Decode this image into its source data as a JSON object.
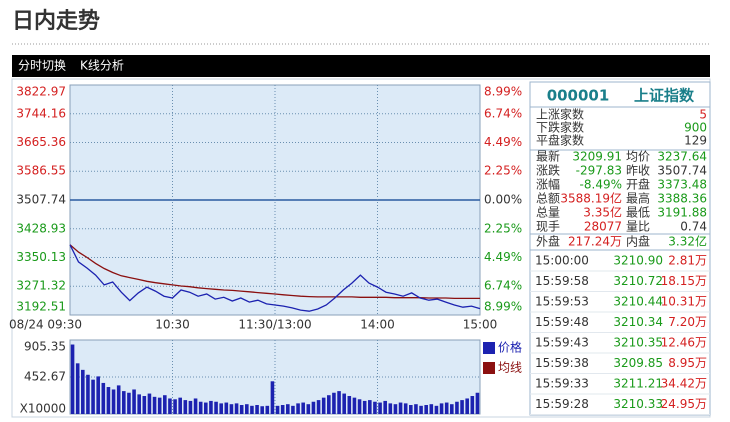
{
  "header": {
    "title": "日内走势"
  },
  "tabs": [
    "分时切换",
    "K线分析"
  ],
  "chart_data": [
    {
      "type": "line",
      "x": [
        0,
        5,
        10,
        15,
        20,
        25,
        30,
        35,
        40,
        45,
        50,
        55,
        60,
        65,
        70,
        75,
        80,
        85,
        90,
        95,
        100,
        105,
        110,
        115,
        120,
        125,
        130,
        135,
        140,
        145,
        150,
        155,
        160,
        165,
        170,
        175,
        180,
        185,
        190,
        195,
        200,
        205,
        210,
        215,
        220,
        225,
        230,
        235,
        240
      ],
      "xlim": [
        0,
        240
      ],
      "xticks": [
        {
          "value": 0,
          "label": "08/24 09:30"
        },
        {
          "value": 60,
          "label": "10:30"
        },
        {
          "value": 120,
          "label": "11:30/13:00"
        },
        {
          "value": 180,
          "label": "14:00"
        },
        {
          "value": 240,
          "label": "15:00"
        }
      ],
      "ylim": [
        3192.51,
        3822.97
      ],
      "yticks": [
        3822.97,
        3744.16,
        3665.36,
        3586.55,
        3507.74,
        3428.93,
        3350.13,
        3271.32,
        3192.51
      ],
      "y2lim": [
        -8.99,
        8.99
      ],
      "y2ticks": [
        {
          "value": 8.99,
          "label": "8.99%"
        },
        {
          "value": 6.74,
          "label": "6.74%"
        },
        {
          "value": 4.49,
          "label": "4.49%"
        },
        {
          "value": 2.25,
          "label": "2.25%"
        },
        {
          "value": 0,
          "label": "0.00%"
        },
        {
          "value": -2.25,
          "label": "2.25%"
        },
        {
          "value": -4.49,
          "label": "4.49%"
        },
        {
          "value": -6.74,
          "label": "6.74%"
        },
        {
          "value": -8.99,
          "label": "8.99%"
        }
      ],
      "baseline": 3507.74,
      "grid": true,
      "series": [
        {
          "name": "价格",
          "color": "#1c22b0",
          "values": [
            3385,
            3338,
            3321,
            3302,
            3275,
            3283,
            3255,
            3232,
            3253,
            3269,
            3258,
            3244,
            3239,
            3261,
            3255,
            3244,
            3250,
            3236,
            3241,
            3231,
            3239,
            3228,
            3233,
            3223,
            3220,
            3217,
            3212,
            3206,
            3203,
            3209,
            3220,
            3239,
            3261,
            3280,
            3302,
            3280,
            3269,
            3255,
            3250,
            3244,
            3253,
            3239,
            3233,
            3236,
            3228,
            3220,
            3214,
            3217,
            3210
          ]
        },
        {
          "name": "均线",
          "color": "#8b1010",
          "values": [
            3385,
            3365,
            3350,
            3334,
            3320,
            3309,
            3300,
            3295,
            3290,
            3285,
            3281,
            3278,
            3275,
            3272,
            3270,
            3267,
            3265,
            3263,
            3261,
            3260,
            3258,
            3256,
            3254,
            3252,
            3250,
            3248,
            3246,
            3244,
            3243,
            3242,
            3242,
            3242,
            3242,
            3242,
            3241,
            3241,
            3241,
            3241,
            3240,
            3240,
            3240,
            3240,
            3239,
            3239,
            3239,
            3238,
            3238,
            3238,
            3238
          ]
        }
      ]
    },
    {
      "type": "bar",
      "color": "#1c22b0",
      "values": [
        850,
        620,
        540,
        480,
        420,
        460,
        380,
        330,
        300,
        350,
        280,
        260,
        300,
        240,
        220,
        250,
        210,
        200,
        230,
        190,
        180,
        200,
        170,
        160,
        190,
        150,
        140,
        160,
        150,
        130,
        140,
        120,
        130,
        110,
        120,
        100,
        110,
        95,
        100,
        400,
        100,
        110,
        120,
        100,
        130,
        140,
        120,
        150,
        170,
        200,
        230,
        260,
        280,
        250,
        220,
        200,
        180,
        160,
        170,
        150,
        140,
        160,
        130,
        120,
        140,
        130,
        110,
        120,
        100,
        110,
        120,
        100,
        130,
        140,
        120,
        150,
        170,
        190,
        220,
        260
      ],
      "ylim": [
        0,
        905.35
      ],
      "yticks": [
        {
          "value": 0,
          "label": "X10000"
        },
        452.67,
        905.35
      ],
      "grid": true
    }
  ],
  "quote": {
    "code": "000001",
    "name": "上证指数",
    "breadth": [
      {
        "label": "上涨家数",
        "value": "5",
        "color": "#d42020"
      },
      {
        "label": "下跌家数",
        "value": "900",
        "color": "#1a9a1a"
      },
      {
        "label": "平盘家数",
        "value": "129",
        "color": "#333333"
      }
    ],
    "stats": [
      [
        {
          "label": "最新",
          "value": "3209.91",
          "color": "#1a9a1a"
        },
        {
          "label": "均价",
          "value": "3237.64",
          "color": "#1a9a1a"
        }
      ],
      [
        {
          "label": "涨跌",
          "value": "-297.83",
          "color": "#1a9a1a"
        },
        {
          "label": "昨收",
          "value": "3507.74",
          "color": "#333333"
        }
      ],
      [
        {
          "label": "涨幅",
          "value": "-8.49%",
          "color": "#1a9a1a"
        },
        {
          "label": "开盘",
          "value": "3373.48",
          "color": "#1a9a1a"
        }
      ],
      [
        {
          "label": "总额",
          "value": "3588.19亿",
          "color": "#d42020"
        },
        {
          "label": "最高",
          "value": "3388.36",
          "color": "#1a9a1a"
        }
      ],
      [
        {
          "label": "总量",
          "value": "3.35亿",
          "color": "#d42020"
        },
        {
          "label": "最低",
          "value": "3191.88",
          "color": "#1a9a1a"
        }
      ],
      [
        {
          "label": "现手",
          "value": "28077",
          "color": "#d42020"
        },
        {
          "label": "量比",
          "value": "0.74",
          "color": "#333333"
        }
      ]
    ],
    "flow": [
      {
        "label": "外盘",
        "value": "217.24万",
        "color": "#d42020"
      },
      {
        "label": "内盘",
        "value": "3.32亿",
        "color": "#1a9a1a"
      }
    ]
  },
  "trades": [
    {
      "time": "15:00:00",
      "price": "3210.90",
      "volume": "2.81万"
    },
    {
      "time": "15:59:58",
      "price": "3210.72",
      "volume": "18.15万"
    },
    {
      "time": "15:59:53",
      "price": "3210.44",
      "volume": "10.31万"
    },
    {
      "time": "15:59:48",
      "price": "3210.34",
      "volume": "7.20万"
    },
    {
      "time": "15:59:43",
      "price": "3210.35",
      "volume": "12.46万"
    },
    {
      "time": "15:59:38",
      "price": "3209.85",
      "volume": "8.95万"
    },
    {
      "time": "15:59:33",
      "price": "3211.21",
      "volume": "34.42万"
    },
    {
      "time": "15:59:28",
      "price": "3210.33",
      "volume": "24.95万"
    }
  ]
}
